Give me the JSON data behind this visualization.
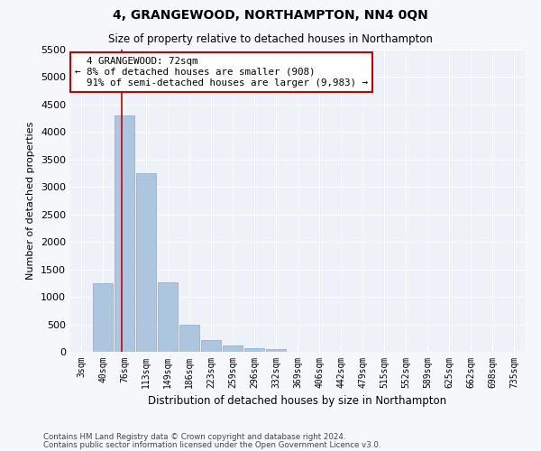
{
  "title": "4, GRANGEWOOD, NORTHAMPTON, NN4 0QN",
  "subtitle": "Size of property relative to detached houses in Northampton",
  "xlabel": "Distribution of detached houses by size in Northampton",
  "ylabel": "Number of detached properties",
  "categories": [
    "3sqm",
    "40sqm",
    "76sqm",
    "113sqm",
    "149sqm",
    "186sqm",
    "223sqm",
    "259sqm",
    "296sqm",
    "332sqm",
    "369sqm",
    "406sqm",
    "442sqm",
    "479sqm",
    "515sqm",
    "552sqm",
    "589sqm",
    "625sqm",
    "662sqm",
    "698sqm",
    "735sqm"
  ],
  "values": [
    0,
    1250,
    4300,
    3250,
    1270,
    490,
    210,
    110,
    70,
    50,
    0,
    0,
    0,
    0,
    0,
    0,
    0,
    0,
    0,
    0,
    0
  ],
  "bar_color": "#adc6e0",
  "bar_edge_color": "#7aafd4",
  "property_label": "4 GRANGEWOOD: 72sqm",
  "pct_smaller": "8% of detached houses are smaller (908)",
  "pct_larger": "91% of semi-detached houses are larger (9,983)",
  "ylim": [
    0,
    5500
  ],
  "yticks": [
    0,
    500,
    1000,
    1500,
    2000,
    2500,
    3000,
    3500,
    4000,
    4500,
    5000,
    5500
  ],
  "red_line_color": "#cc0000",
  "annotation_box_color": "#cc0000",
  "bg_color": "#eef2f8",
  "grid_color": "#ffffff",
  "footer_line1": "Contains HM Land Registry data © Crown copyright and database right 2024.",
  "footer_line2": "Contains public sector information licensed under the Open Government Licence v3.0."
}
